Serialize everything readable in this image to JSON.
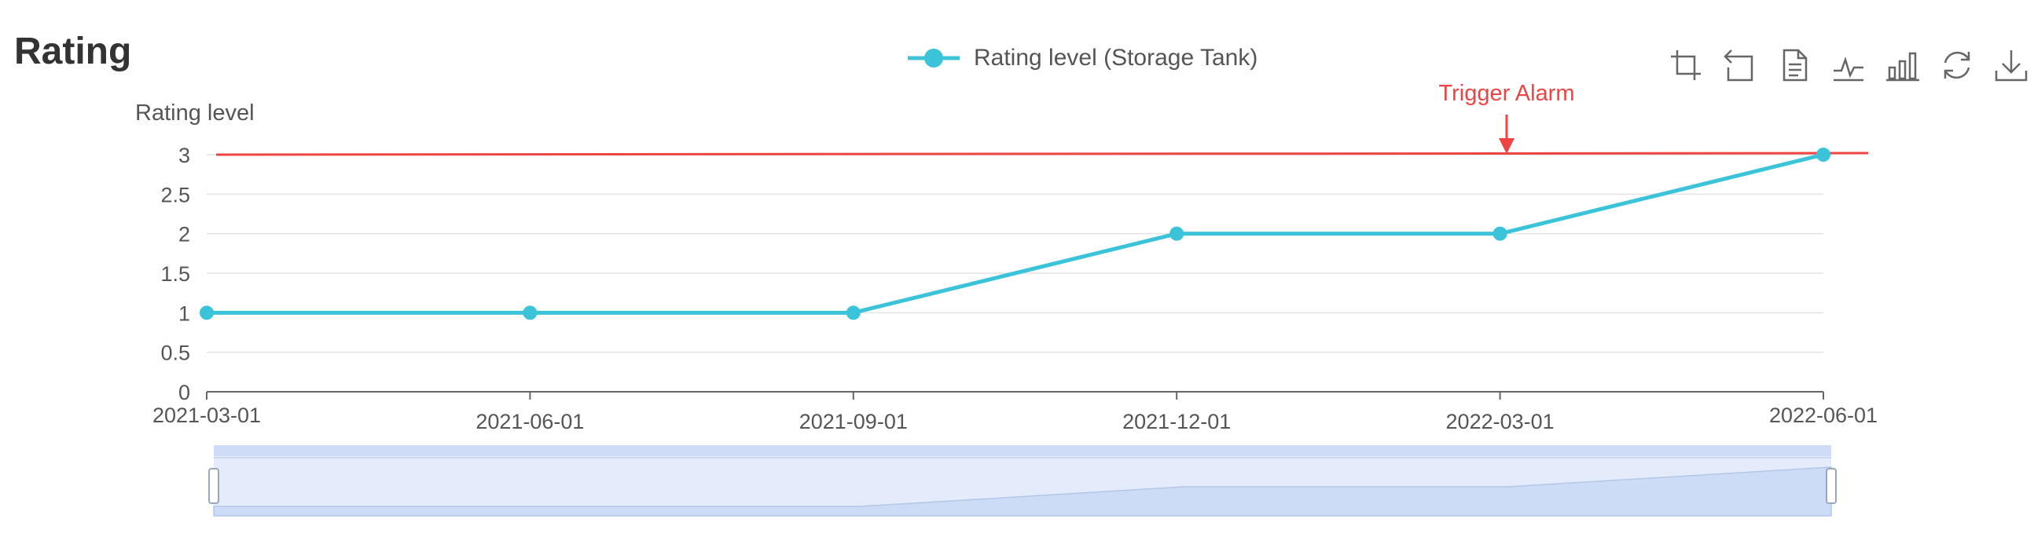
{
  "page": {
    "title": "Rating"
  },
  "legend": {
    "label": "Rating level (Storage Tank)"
  },
  "toolbox": {
    "items": [
      {
        "name": "zoom-select-icon"
      },
      {
        "name": "zoom-back-icon"
      },
      {
        "name": "data-view-icon"
      },
      {
        "name": "line-chart-icon"
      },
      {
        "name": "bar-chart-icon"
      },
      {
        "name": "restore-icon"
      },
      {
        "name": "save-image-icon"
      }
    ]
  },
  "colors": {
    "series": "#3bc4d9",
    "alarm": "#ee4444",
    "grid": "#e4e4e4",
    "axis": "#666666",
    "text": "#555555"
  },
  "chart_data": {
    "type": "line",
    "ylabel": "Rating level",
    "xlabel": "",
    "categories": [
      "2021-03-01",
      "2021-06-01",
      "2021-09-01",
      "2021-12-01",
      "2022-03-01",
      "2022-06-01"
    ],
    "series": [
      {
        "name": "Rating level (Storage Tank)",
        "values": [
          1,
          1,
          1,
          2,
          2,
          3
        ]
      }
    ],
    "ylim": [
      0,
      3
    ],
    "yticks": [
      "0",
      "0.5",
      "1",
      "1.5",
      "2",
      "2.5",
      "3"
    ],
    "grid": true,
    "legend_position": "top-center",
    "threshold": {
      "value": 3,
      "label": "Trigger Alarm"
    },
    "data_zoom": {
      "start": "2021-03-01",
      "end": "2022-06-01"
    }
  }
}
